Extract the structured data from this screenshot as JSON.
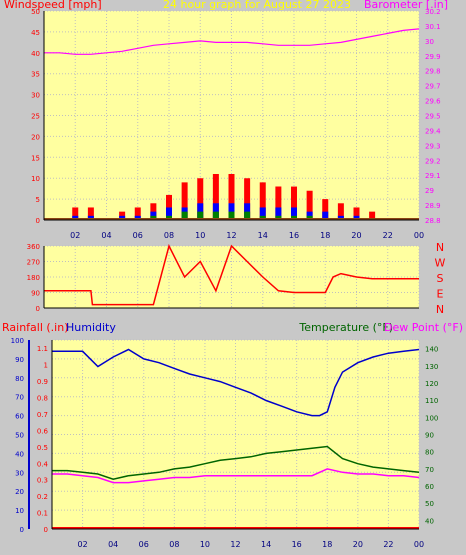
{
  "chart_data": [
    {
      "type": "line",
      "panel": "wind-and-barometer",
      "title": "24 hour graph for   August 27 2023",
      "ylabel_left": "Windspeed [mph]",
      "ylabel_right": "Barometer [.in]",
      "x_ticks": [
        "02",
        "04",
        "06",
        "08",
        "10",
        "12",
        "14",
        "16",
        "18",
        "20",
        "22",
        "00"
      ],
      "x_range_hours": [
        0,
        24
      ],
      "y_left_range": [
        0,
        50
      ],
      "y_left_ticks": [
        "0",
        "5",
        "10",
        "15",
        "20",
        "25",
        "30",
        "35",
        "40",
        "45",
        "50"
      ],
      "y_right_range": [
        28.8,
        30.2
      ],
      "y_right_ticks": [
        "28.8",
        "28.9",
        "29",
        "29.1",
        "29.2",
        "29.3",
        "29.4",
        "29.5",
        "29.6",
        "29.7",
        "29.8",
        "29.9",
        "30",
        "30.1",
        "30.2"
      ],
      "colors": {
        "gust": "#ff0000",
        "windspeed": "#0000ff",
        "wind_avg": "#008000",
        "barometer": "#ff00ff",
        "plot_bg": "#ffffa0"
      },
      "series": [
        {
          "role": "barometer",
          "x": [
            0,
            1,
            2,
            3,
            4,
            5,
            6,
            7,
            8,
            9,
            10,
            11,
            12,
            13,
            14,
            15,
            16,
            17,
            18,
            19,
            20,
            21,
            22,
            23,
            24
          ],
          "values": [
            29.92,
            29.92,
            29.91,
            29.91,
            29.92,
            29.93,
            29.95,
            29.97,
            29.98,
            29.99,
            30.0,
            29.99,
            29.99,
            29.99,
            29.98,
            29.97,
            29.97,
            29.97,
            29.98,
            29.99,
            30.01,
            30.03,
            30.05,
            30.07,
            30.08
          ]
        },
        {
          "role": "gust",
          "x": [
            0,
            1,
            2,
            3,
            4,
            5,
            6,
            7,
            8,
            9,
            10,
            11,
            12,
            13,
            14,
            15,
            16,
            17,
            18,
            19,
            20,
            21,
            22,
            23,
            24
          ],
          "values": [
            0,
            0,
            3,
            3,
            0,
            2,
            3,
            4,
            6,
            9,
            10,
            11,
            11,
            10,
            9,
            8,
            8,
            7,
            5,
            4,
            3,
            2,
            0,
            0,
            0
          ]
        },
        {
          "role": "windspeed",
          "x": [
            0,
            1,
            2,
            3,
            4,
            5,
            6,
            7,
            8,
            9,
            10,
            11,
            12,
            13,
            14,
            15,
            16,
            17,
            18,
            19,
            20,
            21,
            22,
            23,
            24
          ],
          "values": [
            0,
            0,
            1,
            1,
            0,
            1,
            1,
            2,
            3,
            3,
            4,
            4,
            4,
            4,
            3,
            3,
            3,
            2,
            2,
            1,
            1,
            0,
            0,
            0,
            0
          ]
        },
        {
          "role": "wind_avg",
          "x": [
            0,
            1,
            2,
            3,
            4,
            5,
            6,
            7,
            8,
            9,
            10,
            11,
            12,
            13,
            14,
            15,
            16,
            17,
            18,
            19,
            20,
            21,
            22,
            23,
            24
          ],
          "values": [
            0,
            0,
            0,
            0,
            0,
            0,
            0,
            1,
            1,
            2,
            2,
            2,
            2,
            2,
            1,
            1,
            1,
            1,
            0,
            0,
            0,
            0,
            0,
            0,
            0
          ]
        }
      ]
    },
    {
      "type": "line",
      "panel": "wind-direction",
      "x_range_hours": [
        0,
        24
      ],
      "y_range": [
        0,
        360
      ],
      "y_ticks": [
        "0",
        "90",
        "180",
        "270",
        "360"
      ],
      "compass_labels": [
        "N",
        "W",
        "S",
        "E",
        "N"
      ],
      "colors": {
        "direction": "#ff0000"
      },
      "series": [
        {
          "role": "direction",
          "x": [
            0,
            1,
            2,
            3,
            3.1,
            4,
            5,
            6,
            7,
            8,
            9,
            10,
            11,
            12,
            13,
            14,
            15,
            16,
            17,
            18,
            18.5,
            19,
            20,
            21,
            22,
            23,
            24
          ],
          "values": [
            100,
            100,
            100,
            100,
            20,
            20,
            20,
            20,
            20,
            360,
            180,
            270,
            100,
            360,
            270,
            180,
            100,
            90,
            90,
            90,
            180,
            200,
            180,
            170,
            170,
            170,
            170
          ]
        }
      ]
    },
    {
      "type": "line",
      "panel": "humidity-temperature-rain",
      "ylabel_left_1": "Rainfall (.in)",
      "ylabel_left_2": "Humidity",
      "ylabel_right_1": "Temperature (°F)",
      "ylabel_right_2": "Dew Point (°F)",
      "x_ticks": [
        "02",
        "04",
        "06",
        "08",
        "10",
        "12",
        "14",
        "16",
        "18",
        "20",
        "22",
        "00"
      ],
      "x_range_hours": [
        0,
        24
      ],
      "humidity_range": [
        0,
        100
      ],
      "humidity_ticks": [
        "0",
        "10",
        "20",
        "30",
        "40",
        "50",
        "60",
        "70",
        "80",
        "90",
        "100"
      ],
      "rain_range": [
        0,
        1.15
      ],
      "rain_ticks": [
        "0",
        "0.1",
        "0.2",
        "0.3",
        "0.4",
        "0.5",
        "0.6",
        "0.7",
        "0.8",
        "0.9",
        "1",
        "1.1"
      ],
      "temp_range": [
        35,
        145
      ],
      "temp_ticks": [
        "40",
        "50",
        "60",
        "70",
        "80",
        "90",
        "100",
        "110",
        "120",
        "130",
        "140"
      ],
      "colors": {
        "humidity": "#0000cc",
        "temperature": "#006400",
        "dew_point": "#ff00ff",
        "rain": "#ff0000"
      },
      "series": [
        {
          "role": "humidity",
          "x": [
            0,
            1,
            2,
            3,
            4,
            5,
            6,
            7,
            8,
            9,
            10,
            11,
            12,
            13,
            14,
            15,
            16,
            17,
            17.5,
            18,
            18.5,
            19,
            20,
            21,
            22,
            23,
            24
          ],
          "values": [
            94,
            94,
            94,
            86,
            91,
            95,
            90,
            88,
            85,
            82,
            80,
            78,
            75,
            72,
            68,
            65,
            62,
            60,
            60,
            62,
            75,
            83,
            88,
            91,
            93,
            94,
            95
          ]
        },
        {
          "role": "temperature",
          "x": [
            0,
            1,
            2,
            3,
            4,
            5,
            6,
            7,
            8,
            9,
            10,
            11,
            12,
            13,
            14,
            15,
            16,
            17,
            18,
            19,
            20,
            21,
            22,
            23,
            24
          ],
          "values": [
            69,
            69,
            68,
            67,
            64,
            66,
            67,
            68,
            70,
            71,
            73,
            75,
            76,
            77,
            79,
            80,
            81,
            82,
            83,
            76,
            73,
            71,
            70,
            69,
            68
          ]
        },
        {
          "role": "dew_point",
          "x": [
            0,
            1,
            2,
            3,
            4,
            5,
            6,
            7,
            8,
            9,
            10,
            11,
            12,
            13,
            14,
            15,
            16,
            17,
            18,
            19,
            20,
            21,
            22,
            23,
            24
          ],
          "values": [
            67,
            67,
            66,
            65,
            62,
            62,
            63,
            64,
            65,
            65,
            66,
            66,
            66,
            66,
            66,
            66,
            66,
            66,
            70,
            68,
            67,
            67,
            66,
            66,
            65
          ]
        }
      ]
    }
  ]
}
